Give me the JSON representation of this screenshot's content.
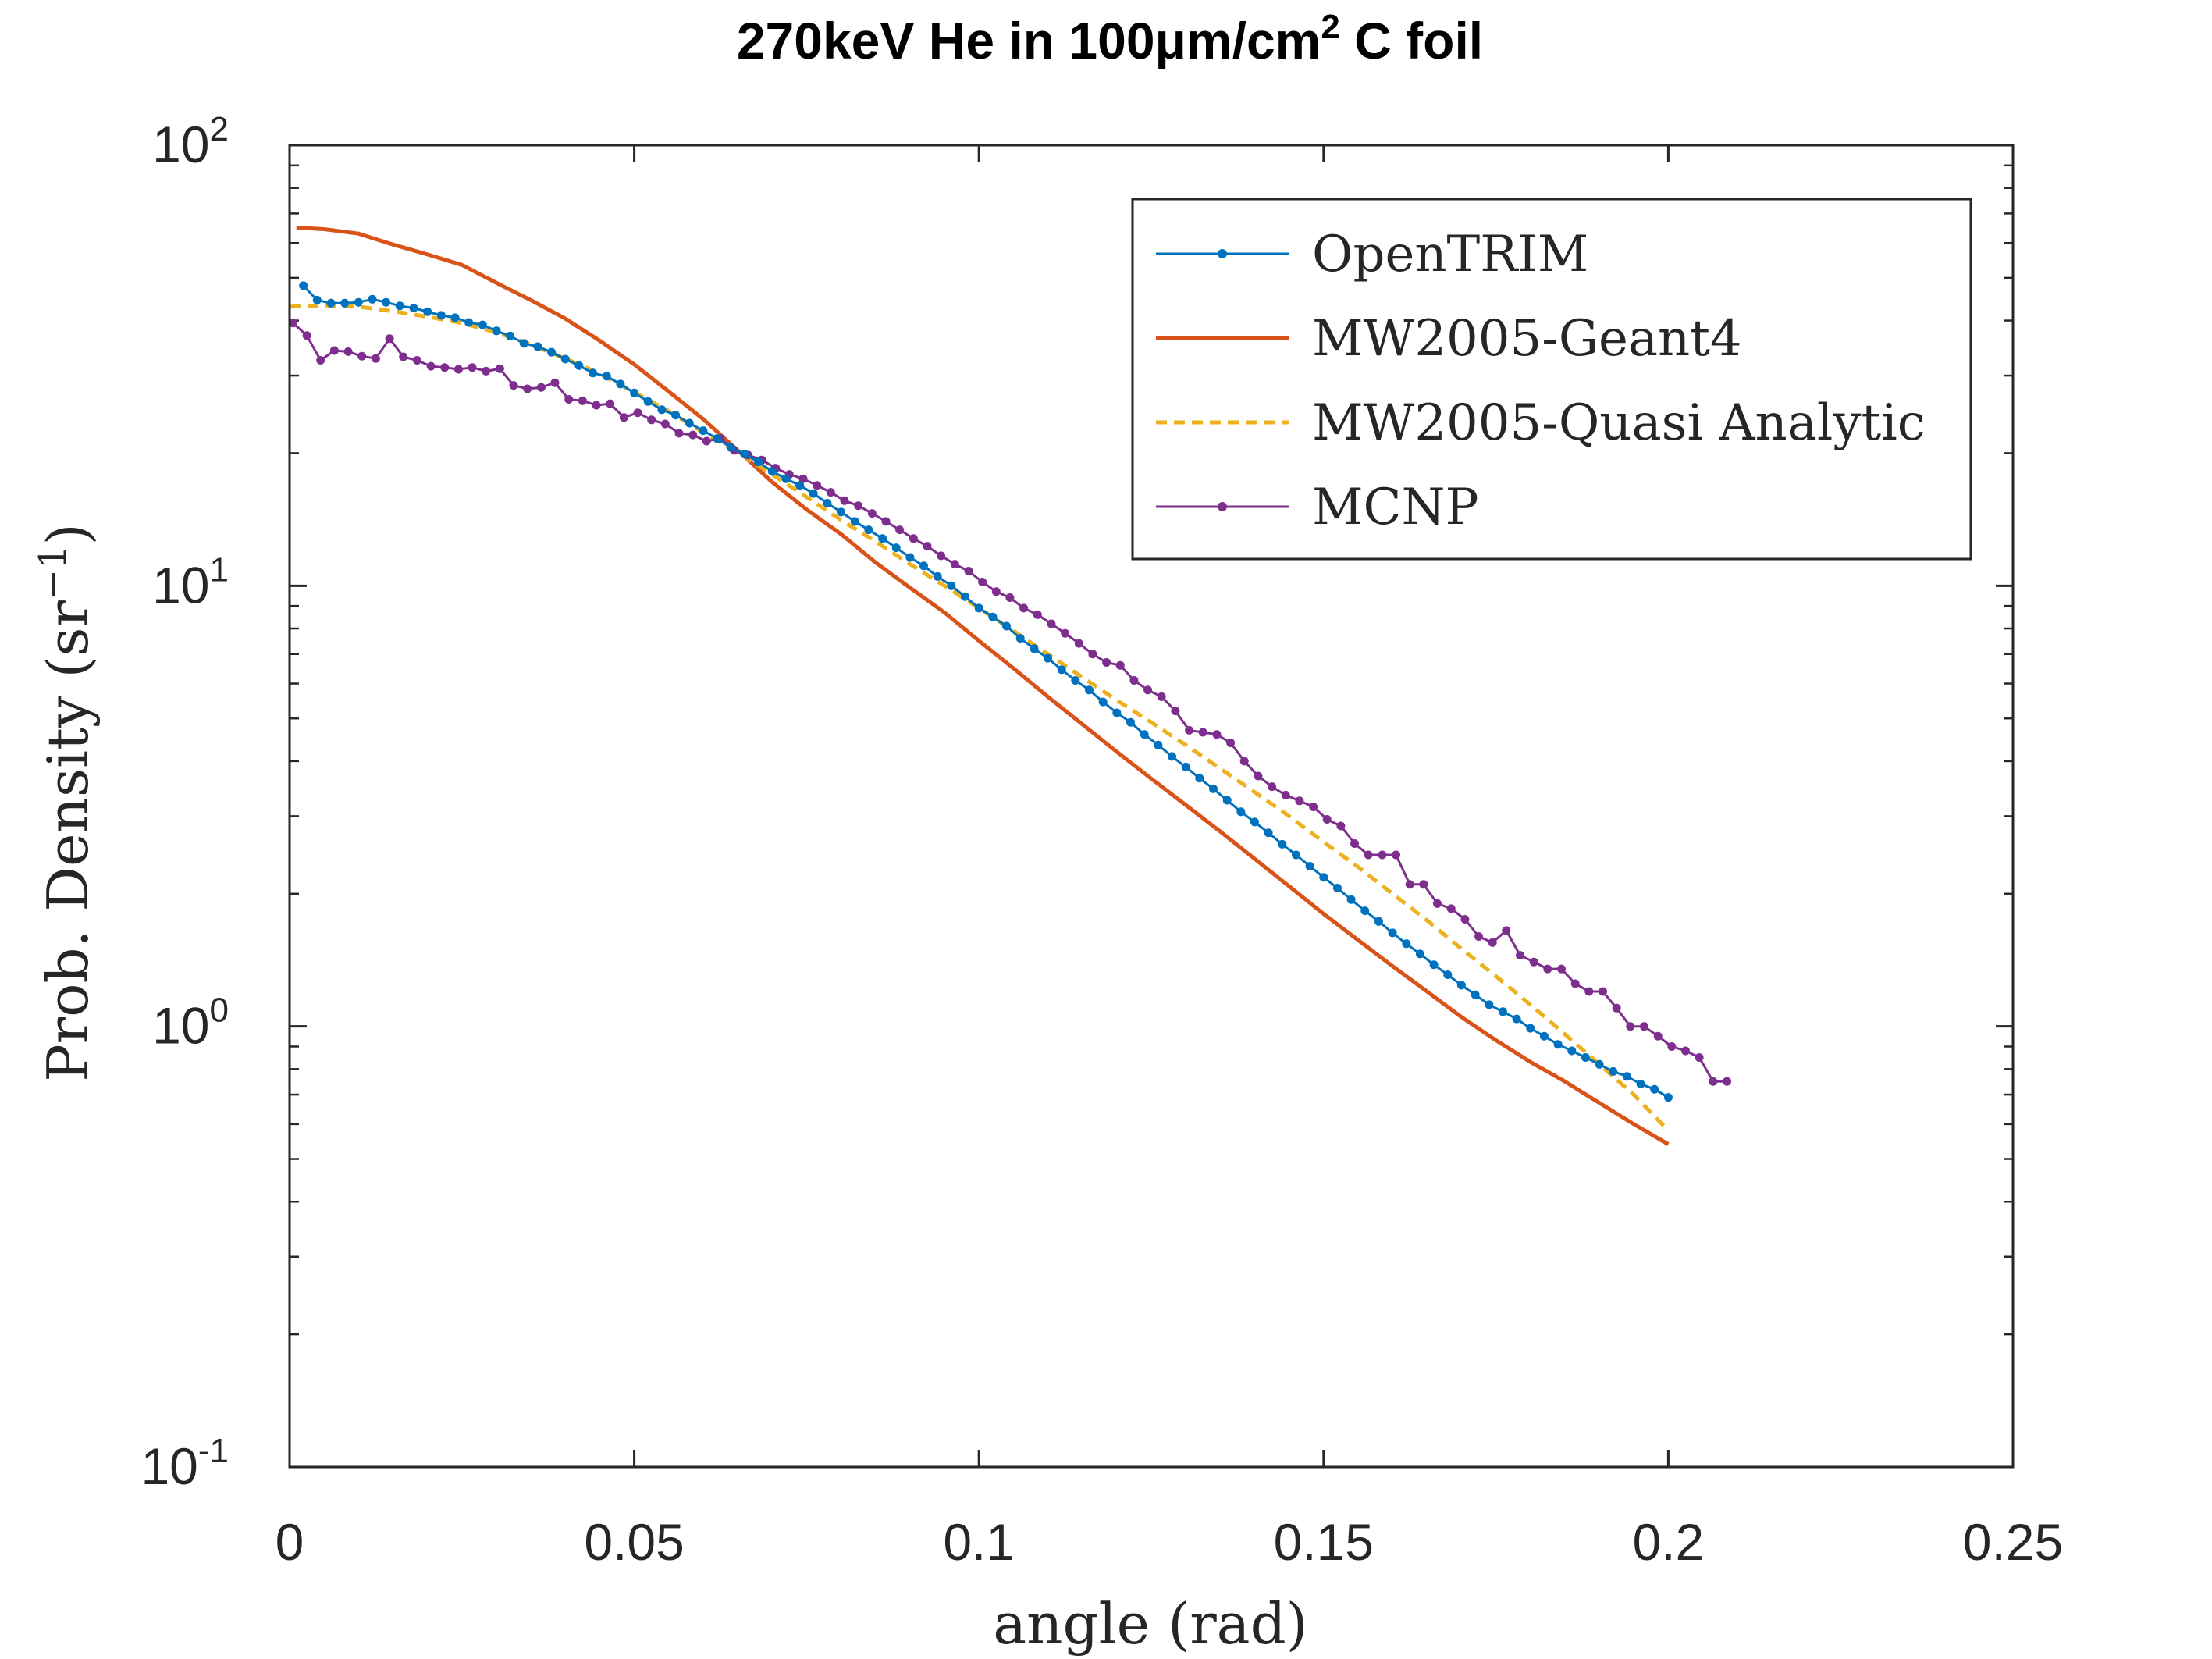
{
  "chart_data": {
    "type": "line",
    "title": "270keV He in 100μm/cm",
    "title_superscript": "2",
    "title_suffix": " C foil",
    "xlabel": "angle (rad)",
    "ylabel": "Prob. Density (sr",
    "ylabel_superscript": "−1",
    "ylabel_suffix": ")",
    "xlim": [
      0,
      0.25
    ],
    "ylim": [
      0.1,
      100
    ],
    "yscale": "log",
    "grid": false,
    "legend_position": "top-right",
    "x_ticks": [
      {
        "value": 0,
        "label": "0"
      },
      {
        "value": 0.05,
        "label": "0.05"
      },
      {
        "value": 0.1,
        "label": "0.1"
      },
      {
        "value": 0.15,
        "label": "0.15"
      },
      {
        "value": 0.2,
        "label": "0.2"
      },
      {
        "value": 0.25,
        "label": "0.25"
      }
    ],
    "y_ticks": [
      {
        "value": 0.1,
        "base": "10",
        "exp": "-1"
      },
      {
        "value": 1,
        "base": "10",
        "exp": "0"
      },
      {
        "value": 10,
        "base": "10",
        "exp": "1"
      },
      {
        "value": 100,
        "base": "10",
        "exp": "2"
      }
    ],
    "series": [
      {
        "name": "OpenTRIM",
        "color": "#0072BD",
        "line": "solid",
        "markers": true,
        "x": [
          0.002,
          0.004,
          0.006,
          0.008,
          0.01,
          0.012,
          0.014,
          0.016,
          0.018,
          0.02,
          0.022,
          0.024,
          0.026,
          0.028,
          0.03,
          0.032,
          0.034,
          0.036,
          0.038,
          0.04,
          0.042,
          0.044,
          0.046,
          0.048,
          0.05,
          0.052,
          0.054,
          0.056,
          0.058,
          0.06,
          0.062,
          0.064,
          0.066,
          0.068,
          0.07,
          0.072,
          0.074,
          0.076,
          0.078,
          0.08,
          0.082,
          0.084,
          0.086,
          0.088,
          0.09,
          0.092,
          0.094,
          0.096,
          0.098,
          0.1,
          0.102,
          0.104,
          0.106,
          0.108,
          0.11,
          0.112,
          0.114,
          0.116,
          0.118,
          0.12,
          0.122,
          0.124,
          0.126,
          0.128,
          0.13,
          0.132,
          0.134,
          0.136,
          0.138,
          0.14,
          0.142,
          0.144,
          0.146,
          0.148,
          0.15,
          0.152,
          0.154,
          0.156,
          0.158,
          0.16,
          0.162,
          0.164,
          0.166,
          0.168,
          0.17,
          0.172,
          0.174,
          0.176,
          0.178,
          0.18,
          0.182,
          0.184,
          0.186,
          0.188,
          0.19,
          0.192,
          0.194,
          0.196,
          0.198,
          0.2
        ],
        "values": [
          48,
          44.5,
          43.8,
          43.8,
          44.0,
          44.7,
          44.0,
          43.2,
          42.7,
          41.9,
          41.1,
          40.6,
          39.6,
          39.1,
          37.9,
          36.9,
          35.5,
          34.9,
          33.9,
          32.7,
          31.6,
          30.4,
          29.9,
          28.7,
          27.4,
          26.2,
          25.1,
          24.4,
          23.4,
          22.5,
          21.6,
          20.6,
          19.9,
          19.1,
          18.2,
          17.5,
          16.9,
          16.2,
          15.4,
          14.7,
          14.0,
          13.4,
          12.8,
          12.2,
          11.6,
          11.1,
          10.5,
          10.0,
          9.45,
          8.9,
          8.5,
          8.1,
          7.6,
          7.2,
          6.85,
          6.45,
          6.1,
          5.8,
          5.45,
          5.15,
          4.9,
          4.6,
          4.35,
          4.1,
          3.88,
          3.66,
          3.46,
          3.26,
          3.07,
          2.91,
          2.75,
          2.59,
          2.45,
          2.31,
          2.18,
          2.06,
          1.94,
          1.83,
          1.73,
          1.63,
          1.54,
          1.46,
          1.38,
          1.31,
          1.24,
          1.18,
          1.12,
          1.08,
          1.04,
          0.99,
          0.95,
          0.91,
          0.88,
          0.85,
          0.82,
          0.79,
          0.77,
          0.74,
          0.72,
          0.69
        ]
      },
      {
        "name": "MW2005-Geant4",
        "color": "#D95319",
        "line": "solid",
        "markers": false,
        "x": [
          0.001,
          0.005,
          0.01,
          0.015,
          0.02,
          0.025,
          0.03,
          0.035,
          0.04,
          0.045,
          0.05,
          0.055,
          0.06,
          0.065,
          0.07,
          0.075,
          0.08,
          0.085,
          0.09,
          0.095,
          0.1,
          0.105,
          0.11,
          0.115,
          0.12,
          0.125,
          0.13,
          0.135,
          0.14,
          0.145,
          0.15,
          0.155,
          0.16,
          0.165,
          0.17,
          0.175,
          0.18,
          0.185,
          0.19,
          0.195,
          0.2
        ],
        "values": [
          65,
          64.5,
          63,
          59.5,
          56.5,
          53.5,
          48.7,
          44.5,
          40.4,
          36.0,
          31.8,
          27.6,
          23.9,
          20.3,
          17.2,
          14.9,
          13.1,
          11.3,
          9.9,
          8.7,
          7.5,
          6.5,
          5.6,
          4.85,
          4.2,
          3.65,
          3.18,
          2.77,
          2.4,
          2.08,
          1.8,
          1.57,
          1.37,
          1.2,
          1.05,
          0.93,
          0.83,
          0.75,
          0.67,
          0.6,
          0.54
        ]
      },
      {
        "name": "MW2005-Quasi Analytic",
        "color": "#EDB120",
        "line": "dashed",
        "markers": false,
        "x": [
          0.0,
          0.005,
          0.01,
          0.015,
          0.02,
          0.025,
          0.03,
          0.035,
          0.04,
          0.045,
          0.05,
          0.055,
          0.06,
          0.065,
          0.07,
          0.075,
          0.08,
          0.085,
          0.09,
          0.095,
          0.1,
          0.105,
          0.11,
          0.115,
          0.12,
          0.125,
          0.13,
          0.135,
          0.14,
          0.145,
          0.15,
          0.155,
          0.16,
          0.165,
          0.17,
          0.175,
          0.18,
          0.185,
          0.19,
          0.195,
          0.2
        ],
        "values": [
          43,
          43.3,
          43,
          42,
          40.8,
          39.5,
          37.6,
          35.3,
          32.8,
          30.3,
          27.5,
          24.9,
          22.3,
          20.1,
          17.9,
          15.9,
          14.1,
          12.6,
          11.2,
          10.0,
          8.9,
          7.9,
          7.0,
          6.2,
          5.5,
          4.9,
          4.35,
          3.85,
          3.4,
          3.0,
          2.62,
          2.3,
          2.0,
          1.74,
          1.5,
          1.3,
          1.12,
          0.96,
          0.82,
          0.7,
          0.58
        ]
      },
      {
        "name": "MCNP",
        "color": "#7E2F8E",
        "line": "solid",
        "markers": true,
        "x": [
          0.0005,
          0.0025,
          0.0045,
          0.0065,
          0.0085,
          0.0105,
          0.0125,
          0.0145,
          0.0165,
          0.0185,
          0.0205,
          0.0225,
          0.0245,
          0.0265,
          0.0285,
          0.0305,
          0.0325,
          0.0345,
          0.0365,
          0.0385,
          0.0405,
          0.0425,
          0.0445,
          0.0465,
          0.0485,
          0.0505,
          0.0525,
          0.0545,
          0.0565,
          0.0585,
          0.0605,
          0.0625,
          0.0645,
          0.0665,
          0.0685,
          0.0705,
          0.0725,
          0.0745,
          0.0765,
          0.0785,
          0.0805,
          0.0825,
          0.0845,
          0.0865,
          0.0885,
          0.0905,
          0.0925,
          0.0945,
          0.0965,
          0.0985,
          0.1005,
          0.1025,
          0.1045,
          0.1065,
          0.1085,
          0.1105,
          0.1125,
          0.1145,
          0.1165,
          0.1185,
          0.1205,
          0.1225,
          0.1245,
          0.1265,
          0.1285,
          0.1305,
          0.1325,
          0.1345,
          0.1365,
          0.1385,
          0.1405,
          0.1425,
          0.1445,
          0.1465,
          0.1485,
          0.1505,
          0.1525,
          0.1545,
          0.1565,
          0.1585,
          0.1605,
          0.1625,
          0.1645,
          0.1665,
          0.1685,
          0.1705,
          0.1725,
          0.1745,
          0.1765,
          0.1785,
          0.1805,
          0.1825,
          0.1845,
          0.1865,
          0.1885,
          0.1905,
          0.1925,
          0.1945,
          0.1965,
          0.1985,
          0.2005,
          0.2025,
          0.2045,
          0.2065,
          0.2085
        ],
        "values": [
          39.5,
          37,
          32.5,
          34.2,
          34,
          33.2,
          32.8,
          36.4,
          33.1,
          32.5,
          31.5,
          31.3,
          31.0,
          31.3,
          30.7,
          31.1,
          28.5,
          28.0,
          28.2,
          28.9,
          26.5,
          26.3,
          25.7,
          25.9,
          24.1,
          24.7,
          23.8,
          23.3,
          22.2,
          22.0,
          21.3,
          21.6,
          20.3,
          19.8,
          19.3,
          18.5,
          17.9,
          17.5,
          16.9,
          16.3,
          15.6,
          15.2,
          14.6,
          14.0,
          13.4,
          12.8,
          12.3,
          11.7,
          11.2,
          10.8,
          10.2,
          9.7,
          9.4,
          8.9,
          8.6,
          8.2,
          7.8,
          7.4,
          7.0,
          6.7,
          6.6,
          6.1,
          5.8,
          5.6,
          5.2,
          4.7,
          4.65,
          4.6,
          4.4,
          4.0,
          3.7,
          3.5,
          3.35,
          3.25,
          3.15,
          2.95,
          2.85,
          2.6,
          2.45,
          2.45,
          2.45,
          2.1,
          2.1,
          1.9,
          1.85,
          1.75,
          1.6,
          1.55,
          1.65,
          1.45,
          1.4,
          1.35,
          1.35,
          1.25,
          1.2,
          1.2,
          1.1,
          1.0,
          1.0,
          0.95,
          0.9,
          0.88,
          0.85,
          0.75,
          0.75
        ]
      }
    ]
  }
}
